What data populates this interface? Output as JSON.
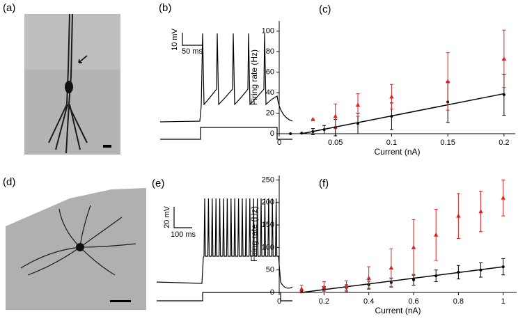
{
  "panel_labels": [
    "(a)",
    "(b)",
    "(c)",
    "(d)",
    "(e)",
    "(f)"
  ],
  "traces": [
    {
      "scale_y": "10 mV",
      "scale_x": "50 ms"
    },
    {
      "scale_y": "20 mV",
      "scale_x": "100 ms"
    }
  ],
  "chart_data": [
    {
      "type": "scatter",
      "xlabel": "Current (nA)",
      "ylabel": "Firing rate (Hz)",
      "xlim": [
        0,
        0.21
      ],
      "xticks": [
        0,
        0.05,
        0.1,
        0.15,
        0.2
      ],
      "ylim": [
        0,
        110
      ],
      "yticks": [
        0,
        20,
        40,
        60,
        80,
        100
      ],
      "series": [
        {
          "color": "#000000",
          "marker": "circle",
          "x": [
            0.01,
            0.02,
            0.03,
            0.04,
            0.05,
            0.07,
            0.1,
            0.15,
            0.2
          ],
          "values": [
            0,
            0.5,
            2,
            4,
            6,
            10,
            17,
            31,
            38
          ],
          "errors": [
            0,
            0,
            3,
            4,
            8,
            10,
            13,
            20,
            20
          ]
        },
        {
          "color": "#e02020",
          "marker": "triangle",
          "x": [
            0.03,
            0.05,
            0.07,
            0.1,
            0.15,
            0.2
          ],
          "values": [
            14,
            17,
            28,
            36,
            51,
            73
          ],
          "errors": [
            0,
            12,
            11,
            12,
            28,
            28
          ]
        }
      ],
      "fit": {
        "color": "#000000",
        "x": [
          0.02,
          0.2
        ],
        "values": [
          0,
          39
        ]
      }
    },
    {
      "type": "scatter",
      "xlabel": "Current (nA)",
      "ylabel": "Firing rate (Hz)",
      "xlim": [
        0,
        1.06
      ],
      "xticks": [
        0,
        0.2,
        0.4,
        0.6,
        0.8,
        1
      ],
      "ylim": [
        0,
        260
      ],
      "yticks": [
        0,
        50,
        100,
        150,
        200,
        250
      ],
      "series": [
        {
          "color": "#000000",
          "marker": "circle",
          "x": [
            0.1,
            0.2,
            0.3,
            0.4,
            0.5,
            0.6,
            0.7,
            0.8,
            0.9,
            1
          ],
          "values": [
            2,
            8,
            11,
            17,
            22,
            28,
            37,
            45,
            50,
            57
          ],
          "errors": [
            3,
            5,
            6,
            8,
            10,
            12,
            13,
            15,
            16,
            18
          ]
        },
        {
          "color": "#e02020",
          "marker": "triangle",
          "x": [
            0.1,
            0.2,
            0.3,
            0.4,
            0.5,
            0.6,
            0.7,
            0.8,
            0.9,
            1
          ],
          "values": [
            8,
            12,
            14,
            32,
            55,
            100,
            128,
            170,
            180,
            210
          ],
          "errors": [
            8,
            12,
            12,
            25,
            42,
            62,
            57,
            50,
            45,
            40
          ]
        }
      ],
      "fit": {
        "color": "#000000",
        "x": [
          0.1,
          1
        ],
        "values": [
          0,
          57
        ]
      }
    }
  ]
}
